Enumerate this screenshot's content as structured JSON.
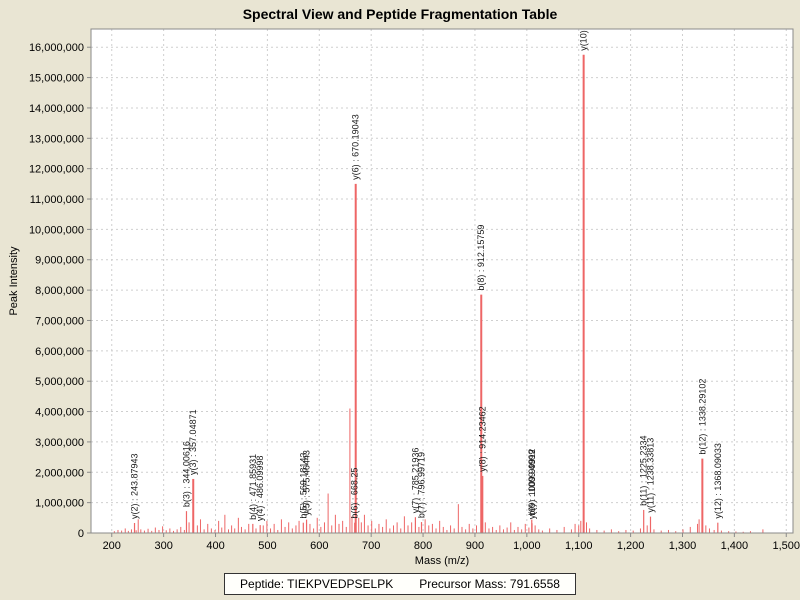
{
  "page": {
    "title": "Spectral View and Peptide Fragmentation Table"
  },
  "footer": {
    "peptide": "Peptide: TIEKPVEDPSELPK",
    "precursor": "Precursor Mass: 791.6558"
  },
  "colors": {
    "background": "#e9e5d3",
    "plot_background": "#ffffff",
    "peak": "#ee6666",
    "grid": "#cfcfcf",
    "axis": "#8a8a8a",
    "tick_text": "#000000",
    "label_text": "#1a1a1a"
  },
  "chart_data": {
    "type": "bar",
    "subtype": "mass-spectrum-stick-plot",
    "title": "Spectral View and Peptide Fragmentation Table",
    "xlabel": "Mass (m/z)",
    "ylabel": "Peak Intensity",
    "xlim": [
      160,
      1513
    ],
    "ylim": [
      0,
      16600000
    ],
    "grid": "dashed",
    "x_ticks": [
      {
        "v": 200,
        "label": "200"
      },
      {
        "v": 300,
        "label": "300"
      },
      {
        "v": 400,
        "label": "400"
      },
      {
        "v": 500,
        "label": "500"
      },
      {
        "v": 600,
        "label": "600"
      },
      {
        "v": 700,
        "label": "700"
      },
      {
        "v": 800,
        "label": "800"
      },
      {
        "v": 900,
        "label": "900"
      },
      {
        "v": 1000,
        "label": "1,000"
      },
      {
        "v": 1100,
        "label": "1,100"
      },
      {
        "v": 1200,
        "label": "1,200"
      },
      {
        "v": 1300,
        "label": "1,300"
      },
      {
        "v": 1400,
        "label": "1,400"
      },
      {
        "v": 1500,
        "label": "1,500"
      }
    ],
    "y_ticks": [
      {
        "v": 0,
        "label": "0"
      },
      {
        "v": 1000000,
        "label": "1,000,000"
      },
      {
        "v": 2000000,
        "label": "2,000,000"
      },
      {
        "v": 3000000,
        "label": "3,000,000"
      },
      {
        "v": 4000000,
        "label": "4,000,000"
      },
      {
        "v": 5000000,
        "label": "5,000,000"
      },
      {
        "v": 6000000,
        "label": "6,000,000"
      },
      {
        "v": 7000000,
        "label": "7,000,000"
      },
      {
        "v": 8000000,
        "label": "8,000,000"
      },
      {
        "v": 9000000,
        "label": "9,000,000"
      },
      {
        "v": 10000000,
        "label": "10,000,000"
      },
      {
        "v": 11000000,
        "label": "11,000,000"
      },
      {
        "v": 12000000,
        "label": "12,000,000"
      },
      {
        "v": 13000000,
        "label": "13,000,000"
      },
      {
        "v": 14000000,
        "label": "14,000,000"
      },
      {
        "v": 15000000,
        "label": "15,000,000"
      },
      {
        "v": 16000000,
        "label": "16,000,000"
      }
    ],
    "labeled_peaks": [
      {
        "label": "y(2) : 243.87943",
        "mz": 243.87943,
        "intensity": 330000
      },
      {
        "label": "b(3) : 344.00616",
        "mz": 344.00616,
        "intensity": 720000
      },
      {
        "label": "y(3) : 357.04871",
        "mz": 357.04871,
        "intensity": 1780000
      },
      {
        "label": "b(4) : 471.85931",
        "mz": 471.85931,
        "intensity": 300000
      },
      {
        "label": "y(4) : 486.09998",
        "mz": 486.09998,
        "intensity": 260000
      },
      {
        "label": "b(5) : 569.18143",
        "mz": 569.18143,
        "intensity": 340000
      },
      {
        "label": "y(5) : 575.46443",
        "mz": 575.46443,
        "intensity": 440000
      },
      {
        "label": "b(6) : 668.25",
        "mz": 668.25,
        "intensity": 340000
      },
      {
        "label": "y(6) : 670.19043",
        "mz": 670.19043,
        "intensity": 11500000
      },
      {
        "label": "y(7) : 785.21936",
        "mz": 785.21936,
        "intensity": 520000
      },
      {
        "label": "b(7) : 796.99719",
        "mz": 796.99719,
        "intensity": 360000
      },
      {
        "label": "b(8) : 912.15759",
        "mz": 912.15759,
        "intensity": 7850000
      },
      {
        "label": "y(8) : 914.23462",
        "mz": 914.23462,
        "intensity": 1880000
      },
      {
        "label": "b(9) : 1009.4999",
        "mz": 1009.4999,
        "intensity": 440000
      },
      {
        "label": "y(9) : 1009.99912",
        "mz": 1009.99912,
        "intensity": 320000
      },
      {
        "label": "y(10)",
        "mz": 1109.5,
        "intensity": 15750000
      },
      {
        "label": "b(11) : 1225.2334",
        "mz": 1225.2334,
        "intensity": 760000
      },
      {
        "label": "y(11) : 1238.33813",
        "mz": 1238.33813,
        "intensity": 540000
      },
      {
        "label": "b(12) : 1338.29102",
        "mz": 1338.29102,
        "intensity": 2450000
      },
      {
        "label": "y(12) : 1368.09033",
        "mz": 1368.09033,
        "intensity": 340000
      }
    ],
    "noise_peaks": [
      [
        205,
        60000
      ],
      [
        212,
        100000
      ],
      [
        219,
        80000
      ],
      [
        226,
        150000
      ],
      [
        232,
        70000
      ],
      [
        238,
        120000
      ],
      [
        247,
        90000
      ],
      [
        251,
        450000
      ],
      [
        256,
        120000
      ],
      [
        263,
        80000
      ],
      [
        270,
        140000
      ],
      [
        277,
        70000
      ],
      [
        284,
        180000
      ],
      [
        291,
        100000
      ],
      [
        298,
        220000
      ],
      [
        305,
        90000
      ],
      [
        312,
        150000
      ],
      [
        319,
        70000
      ],
      [
        326,
        120000
      ],
      [
        333,
        200000
      ],
      [
        340,
        100000
      ],
      [
        349,
        350000
      ],
      [
        365,
        250000
      ],
      [
        371,
        450000
      ],
      [
        378,
        120000
      ],
      [
        385,
        300000
      ],
      [
        392,
        150000
      ],
      [
        399,
        100000
      ],
      [
        406,
        400000
      ],
      [
        412,
        180000
      ],
      [
        418,
        600000
      ],
      [
        425,
        120000
      ],
      [
        431,
        250000
      ],
      [
        437,
        150000
      ],
      [
        444,
        500000
      ],
      [
        450,
        200000
      ],
      [
        457,
        120000
      ],
      [
        464,
        300000
      ],
      [
        478,
        150000
      ],
      [
        492,
        250000
      ],
      [
        499,
        400000
      ],
      [
        506,
        150000
      ],
      [
        513,
        300000
      ],
      [
        520,
        100000
      ],
      [
        527,
        450000
      ],
      [
        534,
        200000
      ],
      [
        541,
        350000
      ],
      [
        548,
        150000
      ],
      [
        555,
        250000
      ],
      [
        561,
        400000
      ],
      [
        582,
        300000
      ],
      [
        589,
        150000
      ],
      [
        596,
        500000
      ],
      [
        603,
        200000
      ],
      [
        610,
        350000
      ],
      [
        617,
        1300000
      ],
      [
        624,
        250000
      ],
      [
        631,
        600000
      ],
      [
        638,
        300000
      ],
      [
        645,
        400000
      ],
      [
        652,
        200000
      ],
      [
        659,
        4100000
      ],
      [
        663,
        550000
      ],
      [
        676,
        500000
      ],
      [
        681,
        350000
      ],
      [
        687,
        600000
      ],
      [
        694,
        250000
      ],
      [
        701,
        400000
      ],
      [
        708,
        150000
      ],
      [
        715,
        300000
      ],
      [
        722,
        200000
      ],
      [
        729,
        450000
      ],
      [
        736,
        150000
      ],
      [
        743,
        250000
      ],
      [
        750,
        350000
      ],
      [
        757,
        150000
      ],
      [
        764,
        550000
      ],
      [
        771,
        250000
      ],
      [
        778,
        350000
      ],
      [
        792,
        200000
      ],
      [
        804,
        450000
      ],
      [
        811,
        250000
      ],
      [
        818,
        300000
      ],
      [
        825,
        150000
      ],
      [
        832,
        400000
      ],
      [
        839,
        200000
      ],
      [
        846,
        100000
      ],
      [
        853,
        250000
      ],
      [
        860,
        150000
      ],
      [
        868,
        950000
      ],
      [
        875,
        200000
      ],
      [
        882,
        120000
      ],
      [
        889,
        300000
      ],
      [
        896,
        150000
      ],
      [
        903,
        250000
      ],
      [
        920,
        350000
      ],
      [
        927,
        150000
      ],
      [
        934,
        200000
      ],
      [
        941,
        100000
      ],
      [
        948,
        250000
      ],
      [
        955,
        120000
      ],
      [
        962,
        180000
      ],
      [
        969,
        350000
      ],
      [
        976,
        100000
      ],
      [
        983,
        200000
      ],
      [
        990,
        120000
      ],
      [
        997,
        300000
      ],
      [
        1004,
        180000
      ],
      [
        1016,
        250000
      ],
      [
        1023,
        120000
      ],
      [
        1030,
        80000
      ],
      [
        1044,
        150000
      ],
      [
        1058,
        100000
      ],
      [
        1072,
        200000
      ],
      [
        1086,
        120000
      ],
      [
        1093,
        300000
      ],
      [
        1100,
        250000
      ],
      [
        1104,
        400000
      ],
      [
        1115,
        350000
      ],
      [
        1121,
        150000
      ],
      [
        1135,
        100000
      ],
      [
        1149,
        80000
      ],
      [
        1163,
        120000
      ],
      [
        1177,
        60000
      ],
      [
        1191,
        100000
      ],
      [
        1205,
        80000
      ],
      [
        1219,
        150000
      ],
      [
        1232,
        250000
      ],
      [
        1245,
        120000
      ],
      [
        1259,
        80000
      ],
      [
        1273,
        100000
      ],
      [
        1287,
        60000
      ],
      [
        1301,
        120000
      ],
      [
        1315,
        200000
      ],
      [
        1329,
        300000
      ],
      [
        1332,
        450000
      ],
      [
        1345,
        250000
      ],
      [
        1352,
        150000
      ],
      [
        1361,
        100000
      ],
      [
        1375,
        80000
      ],
      [
        1389,
        60000
      ],
      [
        1403,
        50000
      ],
      [
        1417,
        40000
      ],
      [
        1431,
        60000
      ],
      [
        1455,
        120000
      ]
    ]
  }
}
